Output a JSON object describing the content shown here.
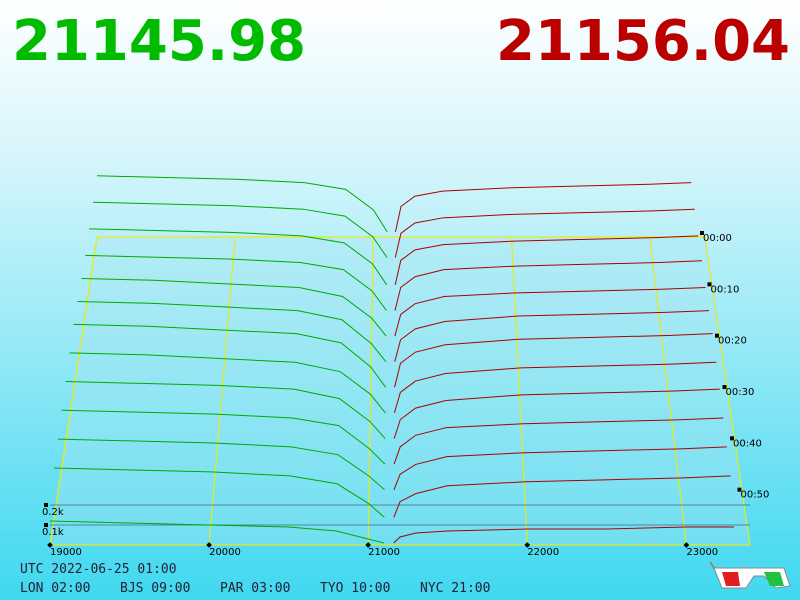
{
  "chart_data": {
    "type": "depth3d",
    "best_bid": 21145.98,
    "best_bid_color": "#00bb00",
    "best_ask": 21156.04,
    "best_ask_color": "#bb0000",
    "xlim": [
      19000,
      23400
    ],
    "xticks": [
      19000,
      20000,
      21000,
      22000,
      23000
    ],
    "tlim": [
      0,
      60
    ],
    "tticks": [
      {
        "value": 0,
        "label": "00:00"
      },
      {
        "value": 10,
        "label": "00:10"
      },
      {
        "value": 20,
        "label": "00:20"
      },
      {
        "value": 30,
        "label": "00:30"
      },
      {
        "value": 40,
        "label": "00:40"
      },
      {
        "value": 50,
        "label": "00:50"
      }
    ],
    "zticks": [
      {
        "value": 0.1,
        "label": "0.1k"
      },
      {
        "value": 0.2,
        "label": "0.2k"
      }
    ],
    "grid_color": "#e8e820",
    "times": [
      0,
      5,
      10,
      15,
      20,
      25,
      30,
      35,
      40,
      45,
      50,
      55,
      60
    ],
    "bids": {
      "color": "#00aa00",
      "prices": [
        19000,
        19500,
        20000,
        20500,
        20800,
        21000,
        21100
      ],
      "volumes": [
        [
          0.36,
          0.35,
          0.34,
          0.32,
          0.28,
          0.16,
          0.03
        ],
        [
          0.35,
          0.34,
          0.33,
          0.31,
          0.27,
          0.15,
          0.03
        ],
        [
          0.34,
          0.33,
          0.32,
          0.3,
          0.26,
          0.14,
          0.02
        ],
        [
          0.33,
          0.32,
          0.31,
          0.29,
          0.25,
          0.13,
          0.02
        ],
        [
          0.34,
          0.33,
          0.31,
          0.29,
          0.24,
          0.12,
          0.02
        ],
        [
          0.35,
          0.34,
          0.32,
          0.3,
          0.25,
          0.12,
          0.02
        ],
        [
          0.36,
          0.35,
          0.33,
          0.31,
          0.26,
          0.13,
          0.02
        ],
        [
          0.34,
          0.33,
          0.31,
          0.29,
          0.24,
          0.12,
          0.02
        ],
        [
          0.32,
          0.31,
          0.3,
          0.28,
          0.23,
          0.11,
          0.02
        ],
        [
          0.3,
          0.29,
          0.28,
          0.26,
          0.22,
          0.1,
          0.02
        ],
        [
          0.28,
          0.27,
          0.26,
          0.24,
          0.2,
          0.09,
          0.02
        ],
        [
          0.26,
          0.25,
          0.24,
          0.22,
          0.18,
          0.08,
          0.01
        ],
        [
          0.12,
          0.11,
          0.1,
          0.09,
          0.07,
          0.03,
          0.01
        ]
      ]
    },
    "asks": {
      "color": "#aa0000",
      "prices": [
        21160,
        21200,
        21300,
        21500,
        22000,
        22500,
        23000,
        23300
      ],
      "volumes": [
        [
          0.03,
          0.18,
          0.24,
          0.27,
          0.29,
          0.3,
          0.31,
          0.32
        ],
        [
          0.03,
          0.17,
          0.23,
          0.26,
          0.28,
          0.29,
          0.3,
          0.31
        ],
        [
          0.02,
          0.16,
          0.22,
          0.25,
          0.27,
          0.28,
          0.29,
          0.3
        ],
        [
          0.02,
          0.15,
          0.21,
          0.25,
          0.27,
          0.28,
          0.29,
          0.3
        ],
        [
          0.02,
          0.14,
          0.2,
          0.24,
          0.26,
          0.27,
          0.28,
          0.29
        ],
        [
          0.02,
          0.14,
          0.2,
          0.24,
          0.27,
          0.28,
          0.29,
          0.3
        ],
        [
          0.02,
          0.15,
          0.21,
          0.25,
          0.28,
          0.29,
          0.3,
          0.31
        ],
        [
          0.02,
          0.13,
          0.19,
          0.23,
          0.26,
          0.27,
          0.28,
          0.29
        ],
        [
          0.02,
          0.12,
          0.18,
          0.22,
          0.25,
          0.26,
          0.27,
          0.28
        ],
        [
          0.02,
          0.11,
          0.17,
          0.21,
          0.23,
          0.24,
          0.25,
          0.26
        ],
        [
          0.02,
          0.1,
          0.15,
          0.19,
          0.21,
          0.22,
          0.23,
          0.24
        ],
        [
          0.01,
          0.09,
          0.13,
          0.17,
          0.19,
          0.2,
          0.21,
          0.22
        ],
        [
          0.01,
          0.04,
          0.06,
          0.07,
          0.08,
          0.08,
          0.09,
          0.09
        ]
      ]
    }
  },
  "footer": {
    "utc": "UTC 2022-06-25 01:00",
    "zones": [
      "LON 02:00",
      "BJS 09:00",
      "PAR 03:00",
      "TYO 10:00",
      "NYC 21:00"
    ]
  }
}
